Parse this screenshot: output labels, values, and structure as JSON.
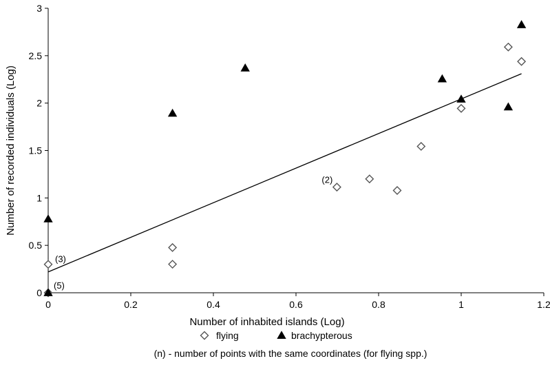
{
  "chart_data": {
    "type": "scatter",
    "title": "",
    "xlabel": "Number of  inhabited islands (Log)",
    "ylabel": "Number of recorded individuals (Log)",
    "xlim": [
      0,
      1.2
    ],
    "ylim": [
      0,
      3
    ],
    "x_ticks": [
      "0",
      "0.2",
      "0.4",
      "0.6",
      "0.8",
      "1",
      "1.2"
    ],
    "y_ticks": [
      "0",
      "0.5",
      "1",
      "1.5",
      "2",
      "2.5",
      "3"
    ],
    "grid": false,
    "legend_position": "bottom",
    "series": [
      {
        "name": "flying",
        "marker": "open-diamond",
        "color": "#555555",
        "points": [
          {
            "x": 0,
            "y": 0.3
          },
          {
            "x": 0,
            "y": 0
          },
          {
            "x": 0.301,
            "y": 0.477
          },
          {
            "x": 0.301,
            "y": 0.301
          },
          {
            "x": 0.699,
            "y": 1.114
          },
          {
            "x": 0.778,
            "y": 1.2
          },
          {
            "x": 0.845,
            "y": 1.079
          },
          {
            "x": 0.903,
            "y": 1.544
          },
          {
            "x": 1.0,
            "y": 1.944
          },
          {
            "x": 1.114,
            "y": 2.591
          },
          {
            "x": 1.146,
            "y": 2.439
          }
        ]
      },
      {
        "name": "brachypterous",
        "marker": "filled-triangle",
        "color": "#000000",
        "points": [
          {
            "x": 0,
            "y": 0.778
          },
          {
            "x": 0,
            "y": 0
          },
          {
            "x": 0.301,
            "y": 1.892
          },
          {
            "x": 0.477,
            "y": 2.369
          },
          {
            "x": 0.954,
            "y": 2.255
          },
          {
            "x": 1.0,
            "y": 2.041
          },
          {
            "x": 1.114,
            "y": 1.959
          },
          {
            "x": 1.146,
            "y": 2.826
          }
        ]
      }
    ],
    "trendline": {
      "x": [
        0,
        1.146
      ],
      "y": [
        0.22,
        2.31
      ]
    },
    "annotations": [
      {
        "text": "(3)",
        "x": 0,
        "y": 0.3
      },
      {
        "text": "(5)",
        "x": 0,
        "y": 0
      },
      {
        "text": "(2)",
        "x": 0.699,
        "y": 1.114
      }
    ],
    "note": "(n) - number of points with the same coordinates (for flying spp.)"
  }
}
